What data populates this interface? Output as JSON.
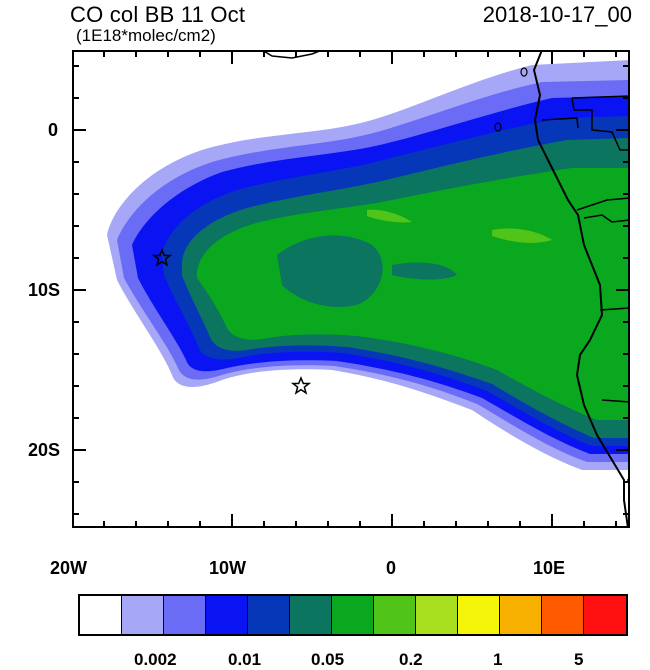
{
  "header": {
    "title": "CO col BB 11 Oct",
    "units": "(1E18*molec/cm2)",
    "datetime": "2018-10-17_00"
  },
  "axes": {
    "x_labels": [
      "20W",
      "10W",
      "0",
      "10E"
    ],
    "y_labels": [
      "0",
      "10S",
      "20S"
    ]
  },
  "map": {
    "region": "Southeast Atlantic / southwest Africa",
    "lon_range": [
      -20,
      15
    ],
    "lat_range": [
      -25,
      5
    ],
    "markers": [
      {
        "name": "star",
        "lon": -14.3,
        "lat": -8
      },
      {
        "name": "star",
        "lon": -5.7,
        "lat": -16
      }
    ]
  },
  "colorbar": {
    "colors": [
      "#ffffff",
      "#a6a8f7",
      "#6a6cf5",
      "#0a14f2",
      "#0537b8",
      "#0b7560",
      "#0aa81e",
      "#50c418",
      "#a8e020",
      "#f5f50a",
      "#f8b000",
      "#ff5a00",
      "#ff1010"
    ],
    "tick_labels": [
      "0.002",
      "0.01",
      "0.05",
      "0.2",
      "1",
      "5"
    ]
  }
}
